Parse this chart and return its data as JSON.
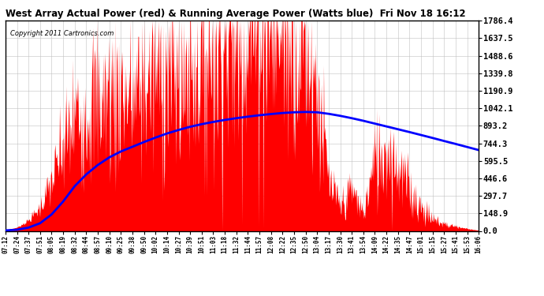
{
  "title": "West Array Actual Power (red) & Running Average Power (Watts blue)  Fri Nov 18 16:12",
  "copyright": "Copyright 2011 Cartronics.com",
  "background_color": "#ffffff",
  "plot_background": "#ffffff",
  "grid_color": "#bbbbbb",
  "yticks": [
    0.0,
    148.9,
    297.7,
    446.6,
    595.5,
    744.3,
    893.2,
    1042.1,
    1190.9,
    1339.8,
    1488.6,
    1637.5,
    1786.4
  ],
  "ymax": 1786.4,
  "xtick_labels": [
    "07:12",
    "07:24",
    "07:37",
    "07:51",
    "08:05",
    "08:19",
    "08:32",
    "08:44",
    "08:57",
    "09:10",
    "09:25",
    "09:38",
    "09:50",
    "10:02",
    "10:14",
    "10:27",
    "10:39",
    "10:51",
    "11:03",
    "11:18",
    "11:32",
    "11:44",
    "11:57",
    "12:08",
    "12:22",
    "12:35",
    "12:50",
    "13:04",
    "13:17",
    "13:30",
    "13:41",
    "13:54",
    "14:09",
    "14:22",
    "14:35",
    "14:47",
    "15:01",
    "15:15",
    "15:27",
    "15:41",
    "15:53",
    "16:06"
  ],
  "red_color": "#ff0000",
  "blue_color": "#0000ff",
  "red_data_y": [
    8,
    30,
    90,
    200,
    420,
    700,
    950,
    1050,
    1100,
    1150,
    1200,
    1100,
    1250,
    1300,
    1350,
    1250,
    1400,
    1500,
    1550,
    1600,
    1650,
    1700,
    1786,
    1750,
    1786,
    1700,
    1600,
    1200,
    400,
    200,
    350,
    150,
    600,
    700,
    550,
    350,
    200,
    100,
    60,
    40,
    20,
    5
  ],
  "blue_data_y": [
    4,
    10,
    28,
    65,
    140,
    250,
    380,
    480,
    560,
    625,
    675,
    715,
    755,
    793,
    828,
    858,
    885,
    907,
    926,
    943,
    958,
    971,
    983,
    993,
    1002,
    1008,
    1011,
    1008,
    995,
    978,
    958,
    936,
    912,
    888,
    864,
    840,
    815,
    790,
    764,
    739,
    713,
    687
  ]
}
